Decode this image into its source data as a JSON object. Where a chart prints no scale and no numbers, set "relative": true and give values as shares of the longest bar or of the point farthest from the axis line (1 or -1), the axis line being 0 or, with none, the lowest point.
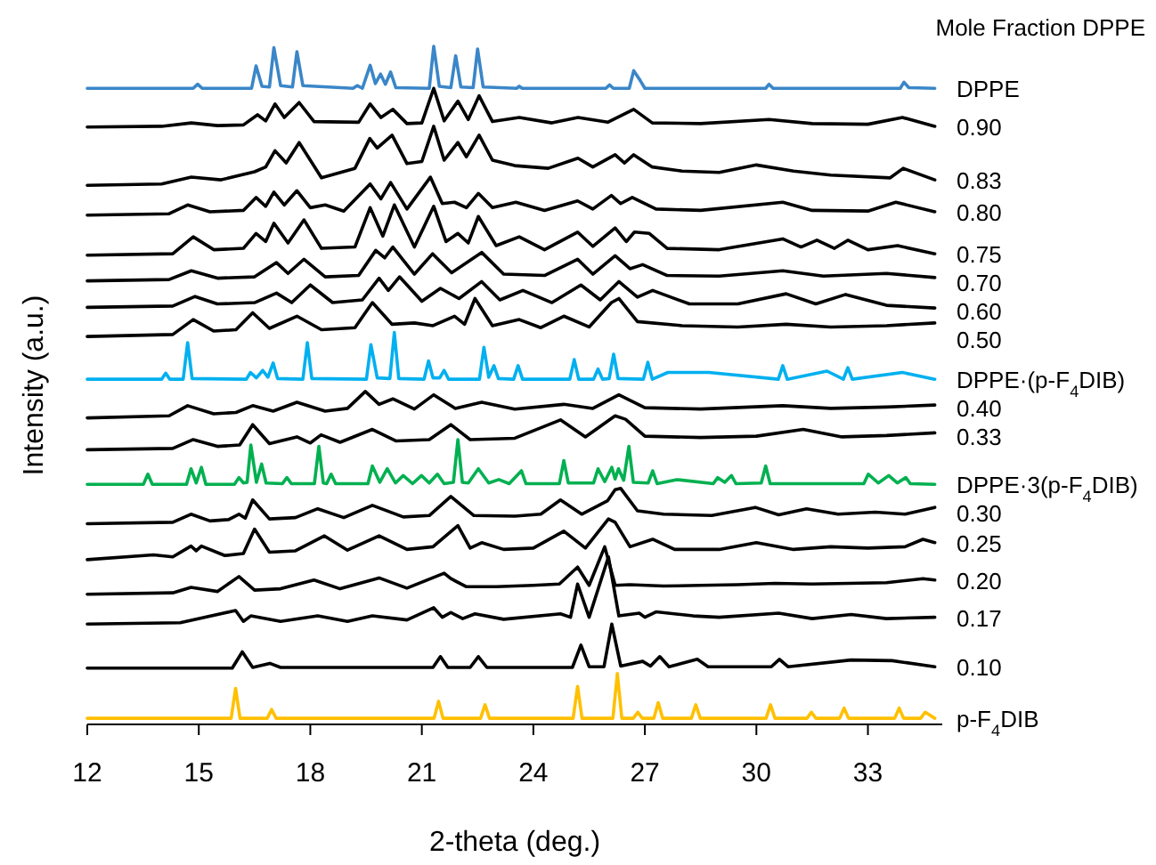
{
  "chart_data": {
    "type": "line",
    "relative": true,
    "xlabel": "2-theta (deg.)",
    "ylabel": "Intensity (a.u.)",
    "legend_title": "Mole Fraction DPPE",
    "xlim": [
      12,
      35
    ],
    "xticks": [
      12,
      15,
      18,
      21,
      24,
      27,
      30,
      33
    ],
    "series": [
      {
        "name": "DPPE",
        "color": "#3a86c8",
        "x": [
          12,
          14.85,
          14.97,
          15.09,
          16.42,
          16.54,
          16.7,
          16.9,
          17.02,
          17.2,
          17.52,
          17.64,
          17.8,
          19.15,
          19.26,
          19.4,
          19.61,
          19.75,
          19.89,
          20.02,
          20.16,
          20.3,
          21.2,
          21.32,
          21.47,
          21.78,
          21.91,
          22.05,
          22.38,
          22.5,
          22.65,
          23.55,
          23.62,
          23.7,
          25.95,
          26.05,
          26.15,
          26.58,
          26.7,
          26.88,
          27.0,
          30.25,
          30.34,
          30.45,
          33.87,
          33.97,
          34.1,
          34.8
        ],
        "values": [
          0.938,
          0.938,
          0.944,
          0.938,
          0.938,
          0.971,
          0.941,
          0.94,
          0.998,
          0.942,
          0.94,
          0.992,
          0.942,
          0.938,
          0.942,
          0.938,
          0.972,
          0.945,
          0.959,
          0.944,
          0.962,
          0.939,
          0.938,
          1.0,
          0.941,
          0.939,
          0.986,
          0.94,
          0.939,
          0.996,
          0.94,
          0.938,
          0.941,
          0.938,
          0.938,
          0.943,
          0.938,
          0.938,
          0.964,
          0.949,
          0.938,
          0.938,
          0.944,
          0.938,
          0.938,
          0.947,
          0.939,
          0.938
        ]
      },
      {
        "name": "0.90",
        "color": "#000000",
        "x": [
          12,
          14.0,
          14.8,
          15.5,
          16.2,
          16.58,
          16.8,
          17.05,
          17.3,
          17.7,
          18.1,
          19.3,
          19.61,
          19.9,
          20.22,
          20.6,
          21.0,
          21.32,
          21.6,
          21.97,
          22.25,
          22.54,
          22.9,
          23.62,
          24.5,
          25.2,
          26.0,
          26.7,
          27.2,
          28.5,
          30.34,
          31.5,
          33.0,
          33.93,
          34.8
        ],
        "values": [
          0.881,
          0.882,
          0.887,
          0.883,
          0.884,
          0.899,
          0.89,
          0.915,
          0.895,
          0.917,
          0.889,
          0.888,
          0.915,
          0.895,
          0.907,
          0.886,
          0.887,
          0.938,
          0.89,
          0.919,
          0.892,
          0.927,
          0.889,
          0.895,
          0.887,
          0.895,
          0.888,
          0.907,
          0.887,
          0.886,
          0.892,
          0.886,
          0.885,
          0.895,
          0.882
        ]
      },
      {
        "name": "0.83",
        "color": "#000000",
        "x": [
          12,
          14.0,
          14.8,
          15.6,
          16.5,
          16.8,
          17.05,
          17.35,
          17.7,
          18.3,
          19.2,
          19.6,
          19.8,
          20.2,
          20.6,
          21.0,
          21.32,
          21.6,
          21.97,
          22.2,
          22.54,
          22.9,
          23.5,
          24.4,
          25.2,
          25.6,
          26.2,
          26.45,
          26.7,
          27.2,
          28.0,
          29.0,
          30.0,
          31.0,
          32.0,
          33.6,
          33.95,
          34.8
        ],
        "values": [
          0.795,
          0.797,
          0.807,
          0.803,
          0.815,
          0.822,
          0.846,
          0.828,
          0.858,
          0.806,
          0.82,
          0.864,
          0.85,
          0.869,
          0.827,
          0.83,
          0.882,
          0.832,
          0.858,
          0.837,
          0.869,
          0.832,
          0.824,
          0.82,
          0.835,
          0.822,
          0.84,
          0.828,
          0.84,
          0.822,
          0.816,
          0.814,
          0.825,
          0.816,
          0.81,
          0.806,
          0.82,
          0.803
        ]
      },
      {
        "name": "0.80",
        "color": "#000000",
        "x": [
          12,
          14.2,
          14.7,
          15.3,
          16.2,
          16.54,
          16.8,
          17.02,
          17.3,
          17.64,
          18.0,
          18.4,
          18.9,
          19.61,
          19.9,
          20.16,
          20.6,
          21.23,
          21.55,
          21.88,
          22.2,
          22.52,
          22.9,
          23.53,
          24.3,
          25.19,
          25.6,
          26.1,
          26.35,
          26.66,
          27.3,
          28.5,
          30.71,
          31.5,
          33.0,
          33.75,
          34.8
        ],
        "values": [
          0.751,
          0.753,
          0.766,
          0.756,
          0.758,
          0.777,
          0.764,
          0.785,
          0.766,
          0.787,
          0.762,
          0.766,
          0.757,
          0.797,
          0.775,
          0.799,
          0.76,
          0.807,
          0.768,
          0.77,
          0.762,
          0.783,
          0.762,
          0.77,
          0.758,
          0.772,
          0.76,
          0.78,
          0.768,
          0.777,
          0.76,
          0.758,
          0.77,
          0.758,
          0.757,
          0.77,
          0.756
        ]
      },
      {
        "name": "0.75",
        "color": "#000000",
        "x": [
          12,
          14.3,
          14.85,
          15.4,
          16.2,
          16.54,
          16.8,
          17.02,
          17.4,
          17.83,
          18.3,
          19.2,
          19.61,
          19.95,
          20.26,
          20.8,
          21.32,
          21.65,
          21.97,
          22.25,
          22.52,
          23.0,
          23.62,
          24.3,
          25.19,
          25.6,
          26.2,
          26.5,
          26.72,
          27.12,
          27.6,
          29.0,
          30.71,
          31.2,
          31.63,
          32.1,
          32.46,
          33.0,
          33.8,
          34.8
        ],
        "values": [
          0.692,
          0.694,
          0.719,
          0.7,
          0.702,
          0.724,
          0.712,
          0.739,
          0.71,
          0.744,
          0.702,
          0.704,
          0.762,
          0.72,
          0.766,
          0.704,
          0.764,
          0.712,
          0.724,
          0.71,
          0.749,
          0.706,
          0.719,
          0.7,
          0.726,
          0.705,
          0.732,
          0.712,
          0.726,
          0.724,
          0.702,
          0.7,
          0.716,
          0.704,
          0.714,
          0.702,
          0.714,
          0.7,
          0.706,
          0.694
        ]
      },
      {
        "name": "0.70",
        "color": "#000000",
        "x": [
          12,
          14.2,
          14.8,
          15.5,
          16.5,
          17.09,
          17.4,
          17.83,
          18.4,
          19.3,
          19.76,
          20.0,
          20.22,
          20.8,
          21.29,
          21.8,
          22.61,
          23.2,
          24.3,
          25.19,
          25.6,
          26.2,
          26.6,
          26.94,
          27.6,
          29.0,
          30.71,
          31.8,
          33.5,
          34.8
        ],
        "values": [
          0.654,
          0.656,
          0.669,
          0.658,
          0.66,
          0.681,
          0.665,
          0.686,
          0.66,
          0.662,
          0.699,
          0.688,
          0.704,
          0.664,
          0.694,
          0.666,
          0.696,
          0.664,
          0.662,
          0.686,
          0.664,
          0.691,
          0.672,
          0.678,
          0.662,
          0.661,
          0.669,
          0.661,
          0.665,
          0.659
        ]
      },
      {
        "name": "0.60",
        "color": "#000000",
        "x": [
          12,
          14.3,
          14.9,
          15.5,
          16.5,
          17.09,
          17.5,
          18.0,
          18.6,
          19.4,
          19.85,
          20.1,
          20.4,
          21.0,
          21.5,
          22.0,
          22.61,
          23.1,
          23.72,
          24.5,
          25.28,
          25.8,
          26.3,
          26.8,
          27.21,
          28.2,
          29.5,
          30.8,
          31.6,
          32.4,
          33.5,
          34.8
        ],
        "values": [
          0.615,
          0.617,
          0.631,
          0.62,
          0.622,
          0.636,
          0.622,
          0.648,
          0.622,
          0.626,
          0.658,
          0.64,
          0.66,
          0.624,
          0.643,
          0.628,
          0.653,
          0.626,
          0.64,
          0.622,
          0.648,
          0.626,
          0.653,
          0.63,
          0.64,
          0.62,
          0.62,
          0.635,
          0.62,
          0.634,
          0.618,
          0.614
        ]
      },
      {
        "name": "0.50",
        "color": "#000000",
        "x": [
          12,
          14.3,
          14.85,
          15.4,
          16.0,
          16.45,
          16.9,
          17.64,
          18.3,
          19.2,
          19.67,
          20.2,
          20.8,
          21.3,
          21.88,
          22.15,
          22.43,
          22.9,
          23.62,
          24.2,
          24.82,
          25.5,
          26.1,
          26.3,
          26.8,
          28.0,
          29.5,
          30.8,
          32.0,
          33.5,
          34.8
        ],
        "values": [
          0.572,
          0.575,
          0.597,
          0.58,
          0.582,
          0.607,
          0.584,
          0.602,
          0.582,
          0.585,
          0.622,
          0.59,
          0.592,
          0.588,
          0.602,
          0.59,
          0.628,
          0.588,
          0.597,
          0.585,
          0.602,
          0.586,
          0.622,
          0.628,
          0.594,
          0.588,
          0.586,
          0.59,
          0.586,
          0.588,
          0.592
        ]
      },
      {
        "name": "DPPE·(p-F$_{4}$DIB)",
        "color": "#00b0f0",
        "x": [
          12,
          14.0,
          14.11,
          14.22,
          14.58,
          14.7,
          14.82,
          16.28,
          16.39,
          16.55,
          16.72,
          16.86,
          17.0,
          17.12,
          17.8,
          17.92,
          18.04,
          19.51,
          19.63,
          19.8,
          20.14,
          20.26,
          20.38,
          21.06,
          21.18,
          21.3,
          21.48,
          21.6,
          21.72,
          22.55,
          22.67,
          22.8,
          22.94,
          23.06,
          23.47,
          23.59,
          23.71,
          24.98,
          25.1,
          25.22,
          25.62,
          25.74,
          25.86,
          26.04,
          26.16,
          26.28,
          26.96,
          27.08,
          27.2,
          27.62,
          28.22,
          28.72,
          30.59,
          30.71,
          30.83,
          31.9,
          32.34,
          32.46,
          32.58,
          33.93,
          34.8
        ],
        "values": [
          0.509,
          0.509,
          0.518,
          0.509,
          0.509,
          0.563,
          0.51,
          0.509,
          0.519,
          0.511,
          0.522,
          0.512,
          0.533,
          0.51,
          0.509,
          0.563,
          0.51,
          0.509,
          0.56,
          0.511,
          0.51,
          0.578,
          0.51,
          0.509,
          0.536,
          0.511,
          0.511,
          0.522,
          0.509,
          0.509,
          0.556,
          0.512,
          0.529,
          0.51,
          0.509,
          0.529,
          0.509,
          0.509,
          0.538,
          0.509,
          0.509,
          0.524,
          0.509,
          0.51,
          0.546,
          0.51,
          0.509,
          0.534,
          0.509,
          0.519,
          0.519,
          0.519,
          0.509,
          0.529,
          0.509,
          0.521,
          0.509,
          0.526,
          0.509,
          0.519,
          0.509
        ]
      },
      {
        "name": "0.40",
        "color": "#000000",
        "x": [
          12,
          14.2,
          14.7,
          15.4,
          16.0,
          16.45,
          17.0,
          17.64,
          18.4,
          19.0,
          19.48,
          19.85,
          20.22,
          20.8,
          21.32,
          21.9,
          22.61,
          23.5,
          24.82,
          25.6,
          26.3,
          27.0,
          28.5,
          30.71,
          32.0,
          33.5,
          34.8
        ],
        "values": [
          0.452,
          0.455,
          0.47,
          0.458,
          0.46,
          0.47,
          0.462,
          0.475,
          0.462,
          0.466,
          0.491,
          0.472,
          0.48,
          0.465,
          0.486,
          0.466,
          0.475,
          0.465,
          0.472,
          0.466,
          0.486,
          0.467,
          0.465,
          0.47,
          0.466,
          0.468,
          0.471
        ]
      },
      {
        "name": "0.33",
        "color": "#000000",
        "x": [
          12,
          14.3,
          14.85,
          15.5,
          16.1,
          16.45,
          16.9,
          17.64,
          18.0,
          18.29,
          18.8,
          19.67,
          20.3,
          21.2,
          21.78,
          22.3,
          23.5,
          24.73,
          25.4,
          26.2,
          26.48,
          27.0,
          28.5,
          30.0,
          31.26,
          32.3,
          33.5,
          34.8
        ],
        "values": [
          0.405,
          0.407,
          0.42,
          0.41,
          0.412,
          0.442,
          0.414,
          0.424,
          0.415,
          0.427,
          0.416,
          0.435,
          0.418,
          0.42,
          0.442,
          0.42,
          0.422,
          0.449,
          0.424,
          0.455,
          0.45,
          0.425,
          0.423,
          0.425,
          0.435,
          0.424,
          0.426,
          0.43
        ]
      },
      {
        "name": "DPPE·3(p-F$_{4}$DIB)",
        "color": "#00b050",
        "x": [
          12,
          13.51,
          13.63,
          13.75,
          14.67,
          14.79,
          14.93,
          15.07,
          15.19,
          15.96,
          16.08,
          16.2,
          16.3,
          16.4,
          16.55,
          16.69,
          16.81,
          17.25,
          17.37,
          17.49,
          18.11,
          18.23,
          18.35,
          18.44,
          18.56,
          18.68,
          19.55,
          19.67,
          19.87,
          20.07,
          20.29,
          20.5,
          20.75,
          20.99,
          21.2,
          21.42,
          21.6,
          21.85,
          21.97,
          22.09,
          22.25,
          22.52,
          22.8,
          23.07,
          23.35,
          23.68,
          23.8,
          24.7,
          24.82,
          24.94,
          25.62,
          25.74,
          25.92,
          26.11,
          26.2,
          26.29,
          26.43,
          26.57,
          26.69,
          27.09,
          27.21,
          27.33,
          27.86,
          28.84,
          28.96,
          29.15,
          29.33,
          29.45,
          30.13,
          30.25,
          30.37,
          32.89,
          33.01,
          33.28,
          33.56,
          33.79,
          34.02,
          34.14,
          34.8
        ],
        "values": [
          0.354,
          0.354,
          0.369,
          0.354,
          0.354,
          0.377,
          0.356,
          0.379,
          0.354,
          0.354,
          0.364,
          0.356,
          0.357,
          0.412,
          0.357,
          0.384,
          0.356,
          0.355,
          0.364,
          0.355,
          0.355,
          0.41,
          0.356,
          0.355,
          0.369,
          0.355,
          0.355,
          0.381,
          0.357,
          0.377,
          0.356,
          0.367,
          0.355,
          0.367,
          0.356,
          0.369,
          0.355,
          0.357,
          0.42,
          0.357,
          0.356,
          0.377,
          0.356,
          0.361,
          0.355,
          0.374,
          0.355,
          0.355,
          0.389,
          0.356,
          0.356,
          0.377,
          0.358,
          0.379,
          0.362,
          0.377,
          0.36,
          0.41,
          0.357,
          0.356,
          0.374,
          0.355,
          0.361,
          0.355,
          0.364,
          0.357,
          0.367,
          0.355,
          0.356,
          0.381,
          0.355,
          0.355,
          0.369,
          0.356,
          0.367,
          0.356,
          0.364,
          0.355,
          0.354
        ]
      },
      {
        "name": "0.30",
        "color": "#000000",
        "x": [
          12,
          14.3,
          14.79,
          15.3,
          15.8,
          16.08,
          16.25,
          16.45,
          16.9,
          17.6,
          18.2,
          18.9,
          19.67,
          20.5,
          21.2,
          21.78,
          22.4,
          23.5,
          24.2,
          24.73,
          25.3,
          26.0,
          26.2,
          26.35,
          26.8,
          27.5,
          28.8,
          29.97,
          30.6,
          31.35,
          32.2,
          33.2,
          34.0,
          34.8
        ],
        "values": [
          0.296,
          0.298,
          0.31,
          0.3,
          0.302,
          0.31,
          0.304,
          0.331,
          0.303,
          0.305,
          0.318,
          0.305,
          0.323,
          0.306,
          0.308,
          0.336,
          0.308,
          0.307,
          0.31,
          0.331,
          0.31,
          0.33,
          0.346,
          0.348,
          0.315,
          0.31,
          0.308,
          0.32,
          0.309,
          0.318,
          0.31,
          0.313,
          0.31,
          0.32
        ]
      },
      {
        "name": "0.25",
        "color": "#000000",
        "x": [
          12,
          13.78,
          14.3,
          14.79,
          14.93,
          15.07,
          15.7,
          16.2,
          16.5,
          16.9,
          17.6,
          18.38,
          19.0,
          19.85,
          20.6,
          21.3,
          21.97,
          22.3,
          22.61,
          23.2,
          24.0,
          24.82,
          25.4,
          26.02,
          26.2,
          26.6,
          27.21,
          27.8,
          29.0,
          30.0,
          31.0,
          32.0,
          33.0,
          34.0,
          34.48,
          34.8
        ],
        "values": [
          0.243,
          0.25,
          0.247,
          0.263,
          0.256,
          0.263,
          0.249,
          0.252,
          0.288,
          0.254,
          0.256,
          0.278,
          0.257,
          0.278,
          0.258,
          0.262,
          0.293,
          0.26,
          0.268,
          0.258,
          0.26,
          0.285,
          0.26,
          0.303,
          0.298,
          0.262,
          0.273,
          0.258,
          0.258,
          0.268,
          0.258,
          0.262,
          0.26,
          0.262,
          0.273,
          0.268
        ]
      },
      {
        "name": "0.20",
        "color": "#000000",
        "x": [
          12,
          14.3,
          14.79,
          15.5,
          16.08,
          16.5,
          17.2,
          18.1,
          18.8,
          19.85,
          20.6,
          21.6,
          21.78,
          22.2,
          23.0,
          24.0,
          24.7,
          25.19,
          25.5,
          25.92,
          26.2,
          26.6,
          27.5,
          28.5,
          29.5,
          30.5,
          31.5,
          32.5,
          33.5,
          34.48,
          34.8
        ],
        "values": [
          0.192,
          0.194,
          0.202,
          0.196,
          0.218,
          0.198,
          0.2,
          0.213,
          0.2,
          0.216,
          0.201,
          0.223,
          0.215,
          0.203,
          0.203,
          0.205,
          0.207,
          0.232,
          0.205,
          0.262,
          0.205,
          0.206,
          0.204,
          0.205,
          0.206,
          0.208,
          0.207,
          0.208,
          0.209,
          0.215,
          0.213
        ]
      },
      {
        "name": "0.17",
        "color": "#000000",
        "x": [
          12,
          14.5,
          15.99,
          16.2,
          16.4,
          17.2,
          18.2,
          19.0,
          19.67,
          20.6,
          21.32,
          21.55,
          21.78,
          22.1,
          22.43,
          23.2,
          24.73,
          25.0,
          25.19,
          25.5,
          26.02,
          26.3,
          26.85,
          27.0,
          27.3,
          28.3,
          29.0,
          30.6,
          31.5,
          32.55,
          33.5,
          34.8
        ],
        "values": [
          0.148,
          0.15,
          0.168,
          0.152,
          0.16,
          0.152,
          0.16,
          0.152,
          0.16,
          0.154,
          0.172,
          0.158,
          0.165,
          0.156,
          0.163,
          0.155,
          0.163,
          0.158,
          0.207,
          0.158,
          0.247,
          0.16,
          0.164,
          0.158,
          0.166,
          0.16,
          0.158,
          0.164,
          0.156,
          0.162,
          0.156,
          0.158
        ]
      },
      {
        "name": "0.10",
        "color": "#000000",
        "x": [
          12,
          15.9,
          16.17,
          16.45,
          16.91,
          17.2,
          21.3,
          21.5,
          21.7,
          22.3,
          22.52,
          22.75,
          25.05,
          25.28,
          25.5,
          25.9,
          26.11,
          26.35,
          26.94,
          27.15,
          27.4,
          27.65,
          28.41,
          28.7,
          30.4,
          30.62,
          30.85,
          32.55,
          33.65,
          34.8
        ],
        "values": [
          0.083,
          0.083,
          0.107,
          0.084,
          0.09,
          0.084,
          0.084,
          0.1,
          0.084,
          0.084,
          0.1,
          0.084,
          0.084,
          0.117,
          0.085,
          0.085,
          0.148,
          0.086,
          0.093,
          0.086,
          0.1,
          0.085,
          0.096,
          0.085,
          0.085,
          0.096,
          0.085,
          0.095,
          0.094,
          0.085
        ]
      },
      {
        "name": "p-F$_{4}$DIB",
        "color": "#ffc000",
        "x": [
          12,
          15.87,
          15.99,
          16.11,
          16.84,
          16.96,
          17.08,
          21.33,
          21.45,
          21.57,
          22.58,
          22.7,
          22.82,
          25.07,
          25.19,
          25.31,
          26.14,
          26.26,
          26.38,
          26.69,
          26.81,
          26.93,
          27.24,
          27.36,
          27.48,
          28.25,
          28.37,
          28.49,
          30.26,
          30.38,
          30.5,
          31.36,
          31.48,
          31.6,
          32.24,
          32.36,
          32.48,
          33.72,
          33.84,
          33.96,
          34.42,
          34.54,
          34.8
        ],
        "values": [
          0.009,
          0.009,
          0.053,
          0.009,
          0.009,
          0.022,
          0.009,
          0.009,
          0.034,
          0.009,
          0.009,
          0.029,
          0.009,
          0.009,
          0.056,
          0.009,
          0.009,
          0.075,
          0.009,
          0.009,
          0.018,
          0.009,
          0.009,
          0.032,
          0.009,
          0.009,
          0.029,
          0.009,
          0.009,
          0.029,
          0.009,
          0.009,
          0.018,
          0.009,
          0.009,
          0.024,
          0.009,
          0.009,
          0.024,
          0.009,
          0.009,
          0.018,
          0.009
        ]
      }
    ]
  }
}
